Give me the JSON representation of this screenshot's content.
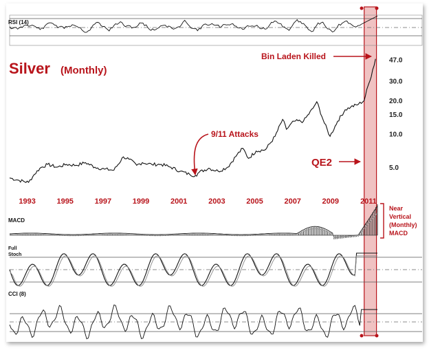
{
  "title": "Silver",
  "subtitle": "(Monthly)",
  "colors": {
    "accent": "#b8141b",
    "highlight_fill": "#e69a9a",
    "line": "#111111",
    "panel_border": "#555555"
  },
  "panels": {
    "rsi": "RSI (14)",
    "macd": "MACD",
    "stoch_line1": "Full",
    "stoch_line2": "Stoch",
    "cci": "CCI (8)"
  },
  "annotations": {
    "bin_laden": "Bin Laden Killed",
    "attacks": "9/11 Attacks",
    "qe2": "QE2",
    "near_vertical": [
      "Near",
      "Vertical",
      "(Monthly)",
      "MACD"
    ]
  },
  "chart_data": [
    {
      "type": "line",
      "title": "Silver",
      "subtitle": "(Monthly)",
      "y_scale": "log",
      "ylim": [
        3.5,
        50
      ],
      "y_ticks": [
        "47.0",
        "30.0",
        "20.0",
        "15.0",
        "10.0",
        "5.0"
      ],
      "x_ticks": [
        "1993",
        "1995",
        "1997",
        "1999",
        "2001",
        "2003",
        "2005",
        "2007",
        "2009",
        "2011"
      ],
      "xlim": [
        1992.0,
        2011.4
      ],
      "highlight_period": [
        2010.7,
        2011.35
      ],
      "series": [
        {
          "x": [
            1992.0,
            1992.5,
            1993.0,
            1993.3,
            1993.6,
            1994.0,
            1994.5,
            1995.0,
            1995.5,
            1996.0,
            1996.5,
            1997.0,
            1997.5,
            1998.0,
            1998.3,
            1998.7,
            1999.0,
            1999.5,
            2000.0,
            2000.5,
            2001.0,
            2001.5,
            2001.8,
            2002.0,
            2002.5,
            2003.0,
            2003.5,
            2004.0,
            2004.3,
            2004.6,
            2005.0,
            2005.5,
            2006.0,
            2006.4,
            2006.6,
            2007.0,
            2007.5,
            2008.0,
            2008.2,
            2008.6,
            2008.9,
            2009.3,
            2009.7,
            2010.0,
            2010.4,
            2010.7,
            2010.9,
            2011.0,
            2011.15,
            2011.3
          ],
          "values": [
            4.0,
            3.8,
            3.65,
            4.3,
            4.9,
            5.3,
            5.0,
            5.3,
            5.2,
            5.5,
            5.0,
            4.8,
            4.7,
            6.2,
            5.9,
            5.2,
            5.5,
            5.3,
            5.3,
            5.0,
            4.6,
            4.3,
            4.2,
            4.5,
            4.9,
            4.6,
            5.0,
            6.5,
            7.4,
            6.0,
            7.0,
            7.2,
            9.5,
            13.5,
            11.0,
            13.0,
            13.0,
            17.0,
            19.5,
            12.5,
            9.5,
            13.0,
            16.5,
            17.5,
            18.5,
            20.0,
            27.0,
            30.0,
            38.0,
            47.5
          ]
        }
      ]
    },
    {
      "type": "line",
      "title": "RSI (14)",
      "series": [
        {
          "name": "RSI (14)"
        }
      ]
    },
    {
      "type": "bar",
      "title": "MACD",
      "series": [
        {
          "name": "MACD"
        }
      ]
    },
    {
      "type": "line",
      "title": "Full Stoch",
      "series": [
        {
          "name": "Full Stoch"
        }
      ]
    },
    {
      "type": "line",
      "title": "CCI (8)",
      "series": [
        {
          "name": "CCI (8)"
        }
      ]
    }
  ]
}
